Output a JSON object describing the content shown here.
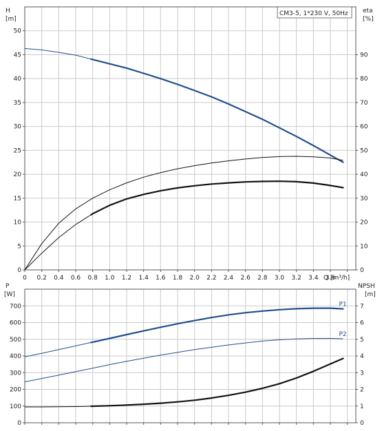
{
  "chart_data": [
    {
      "type": "line",
      "title": "CM3-5, 1*230 V, 50Hz",
      "xlabel": "Q [m³/h]",
      "ylabel_left_name": "H",
      "ylabel_left_unit": "[m]",
      "ylabel_right_name": "eta",
      "ylabel_right_unit": "[%]",
      "xlim": [
        0,
        3.9
      ],
      "ylim_left": [
        0,
        55
      ],
      "ylim_right": [
        0,
        110
      ],
      "x_ticks": [
        "0",
        "0.2",
        "0.4",
        "0.6",
        "0.8",
        "1.0",
        "1.2",
        "1.4",
        "1.6",
        "1.8",
        "2.0",
        "2.2",
        "2.4",
        "2.6",
        "2.8",
        "3.0",
        "3.2",
        "3.4",
        "3.6"
      ],
      "y_left_ticks": [
        "0",
        "5",
        "10",
        "15",
        "20",
        "25",
        "30",
        "35",
        "40",
        "45",
        "50"
      ],
      "y_right_ticks": [
        "0",
        "10",
        "20",
        "30",
        "40",
        "50",
        "60",
        "70",
        "80",
        "90"
      ],
      "grid": true,
      "series": [
        {
          "key": "H",
          "axis": "left",
          "color": "#1f4e8c",
          "x": [
            0,
            0.2,
            0.4,
            0.6,
            0.8,
            1.0,
            1.2,
            1.4,
            1.6,
            1.8,
            2.0,
            2.2,
            2.4,
            2.6,
            2.8,
            3.0,
            3.2,
            3.4,
            3.6,
            3.75
          ],
          "values": [
            46.3,
            46.0,
            45.5,
            44.9,
            44.0,
            43.1,
            42.2,
            41.1,
            40.0,
            38.8,
            37.5,
            36.2,
            34.7,
            33.1,
            31.5,
            29.7,
            27.9,
            26.0,
            24.0,
            22.5
          ],
          "bold_from": 0.78
        },
        {
          "key": "eta_total",
          "axis": "right",
          "color": "#111111",
          "x": [
            0,
            0.2,
            0.4,
            0.6,
            0.8,
            1.0,
            1.2,
            1.4,
            1.6,
            1.8,
            2.0,
            2.2,
            2.4,
            2.6,
            2.8,
            3.0,
            3.2,
            3.4,
            3.6,
            3.75
          ],
          "values": [
            0,
            7,
            13.5,
            19,
            23.5,
            27,
            29.7,
            31.6,
            33.1,
            34.3,
            35.2,
            35.9,
            36.4,
            36.8,
            37.0,
            37.1,
            36.9,
            36.3,
            35.3,
            34.4
          ],
          "bold_from": 0.78
        },
        {
          "key": "eta_pump",
          "axis": "right",
          "color": "#111111",
          "x": [
            0,
            0.2,
            0.4,
            0.6,
            0.8,
            1.0,
            1.2,
            1.4,
            1.6,
            1.8,
            2.0,
            2.2,
            2.4,
            2.6,
            2.8,
            3.0,
            3.2,
            3.4,
            3.6,
            3.75
          ],
          "values": [
            0,
            11,
            19.5,
            25.5,
            30,
            33.5,
            36.4,
            38.8,
            40.7,
            42.3,
            43.6,
            44.7,
            45.6,
            46.4,
            47.0,
            47.4,
            47.5,
            47.3,
            46.8,
            45.8
          ],
          "bold_from": 99
        }
      ]
    },
    {
      "type": "line",
      "xlabel": "",
      "ylabel_left_name": "P",
      "ylabel_left_unit": "[W]",
      "ylabel_right_name": "NPSH",
      "ylabel_right_unit": "[m]",
      "xlim": [
        0,
        3.9
      ],
      "ylim_left": [
        0,
        800
      ],
      "ylim_right": [
        0,
        8
      ],
      "y_left_ticks": [
        "0",
        "100",
        "200",
        "300",
        "400",
        "500",
        "600",
        "700"
      ],
      "y_right_ticks": [
        "0",
        "1",
        "2",
        "3",
        "4",
        "5",
        "6",
        "7"
      ],
      "grid": true,
      "series": [
        {
          "key": "P1",
          "name": "P1",
          "axis": "left",
          "color": "#1f4e8c",
          "x": [
            0,
            0.2,
            0.4,
            0.6,
            0.8,
            1.0,
            1.2,
            1.4,
            1.6,
            1.8,
            2.0,
            2.2,
            2.4,
            2.6,
            2.8,
            3.0,
            3.2,
            3.4,
            3.6,
            3.75
          ],
          "values": [
            395,
            416,
            438,
            460,
            483,
            505,
            528,
            550,
            572,
            593,
            612,
            630,
            646,
            659,
            669,
            677,
            683,
            686,
            686,
            682
          ],
          "bold_from": 0.78
        },
        {
          "key": "P2",
          "name": "P2",
          "axis": "left",
          "color": "#1f4e8c",
          "x": [
            0,
            0.2,
            0.4,
            0.6,
            0.8,
            1.0,
            1.2,
            1.4,
            1.6,
            1.8,
            2.0,
            2.2,
            2.4,
            2.6,
            2.8,
            3.0,
            3.2,
            3.4,
            3.6,
            3.75
          ],
          "values": [
            245,
            265,
            285,
            306,
            327,
            348,
            368,
            387,
            405,
            422,
            438,
            452,
            466,
            478,
            489,
            497,
            502,
            505,
            505,
            503
          ],
          "bold_from": 99
        },
        {
          "key": "NPSH",
          "axis": "right",
          "color": "#111111",
          "x": [
            0,
            0.2,
            0.4,
            0.6,
            0.8,
            1.0,
            1.2,
            1.4,
            1.6,
            1.8,
            2.0,
            2.2,
            2.4,
            2.6,
            2.8,
            3.0,
            3.2,
            3.4,
            3.6,
            3.75
          ],
          "values": [
            0.95,
            0.95,
            0.96,
            0.97,
            0.99,
            1.02,
            1.06,
            1.11,
            1.17,
            1.25,
            1.35,
            1.48,
            1.64,
            1.83,
            2.06,
            2.34,
            2.68,
            3.08,
            3.52,
            3.85
          ],
          "bold_from": 0.78
        }
      ]
    }
  ]
}
